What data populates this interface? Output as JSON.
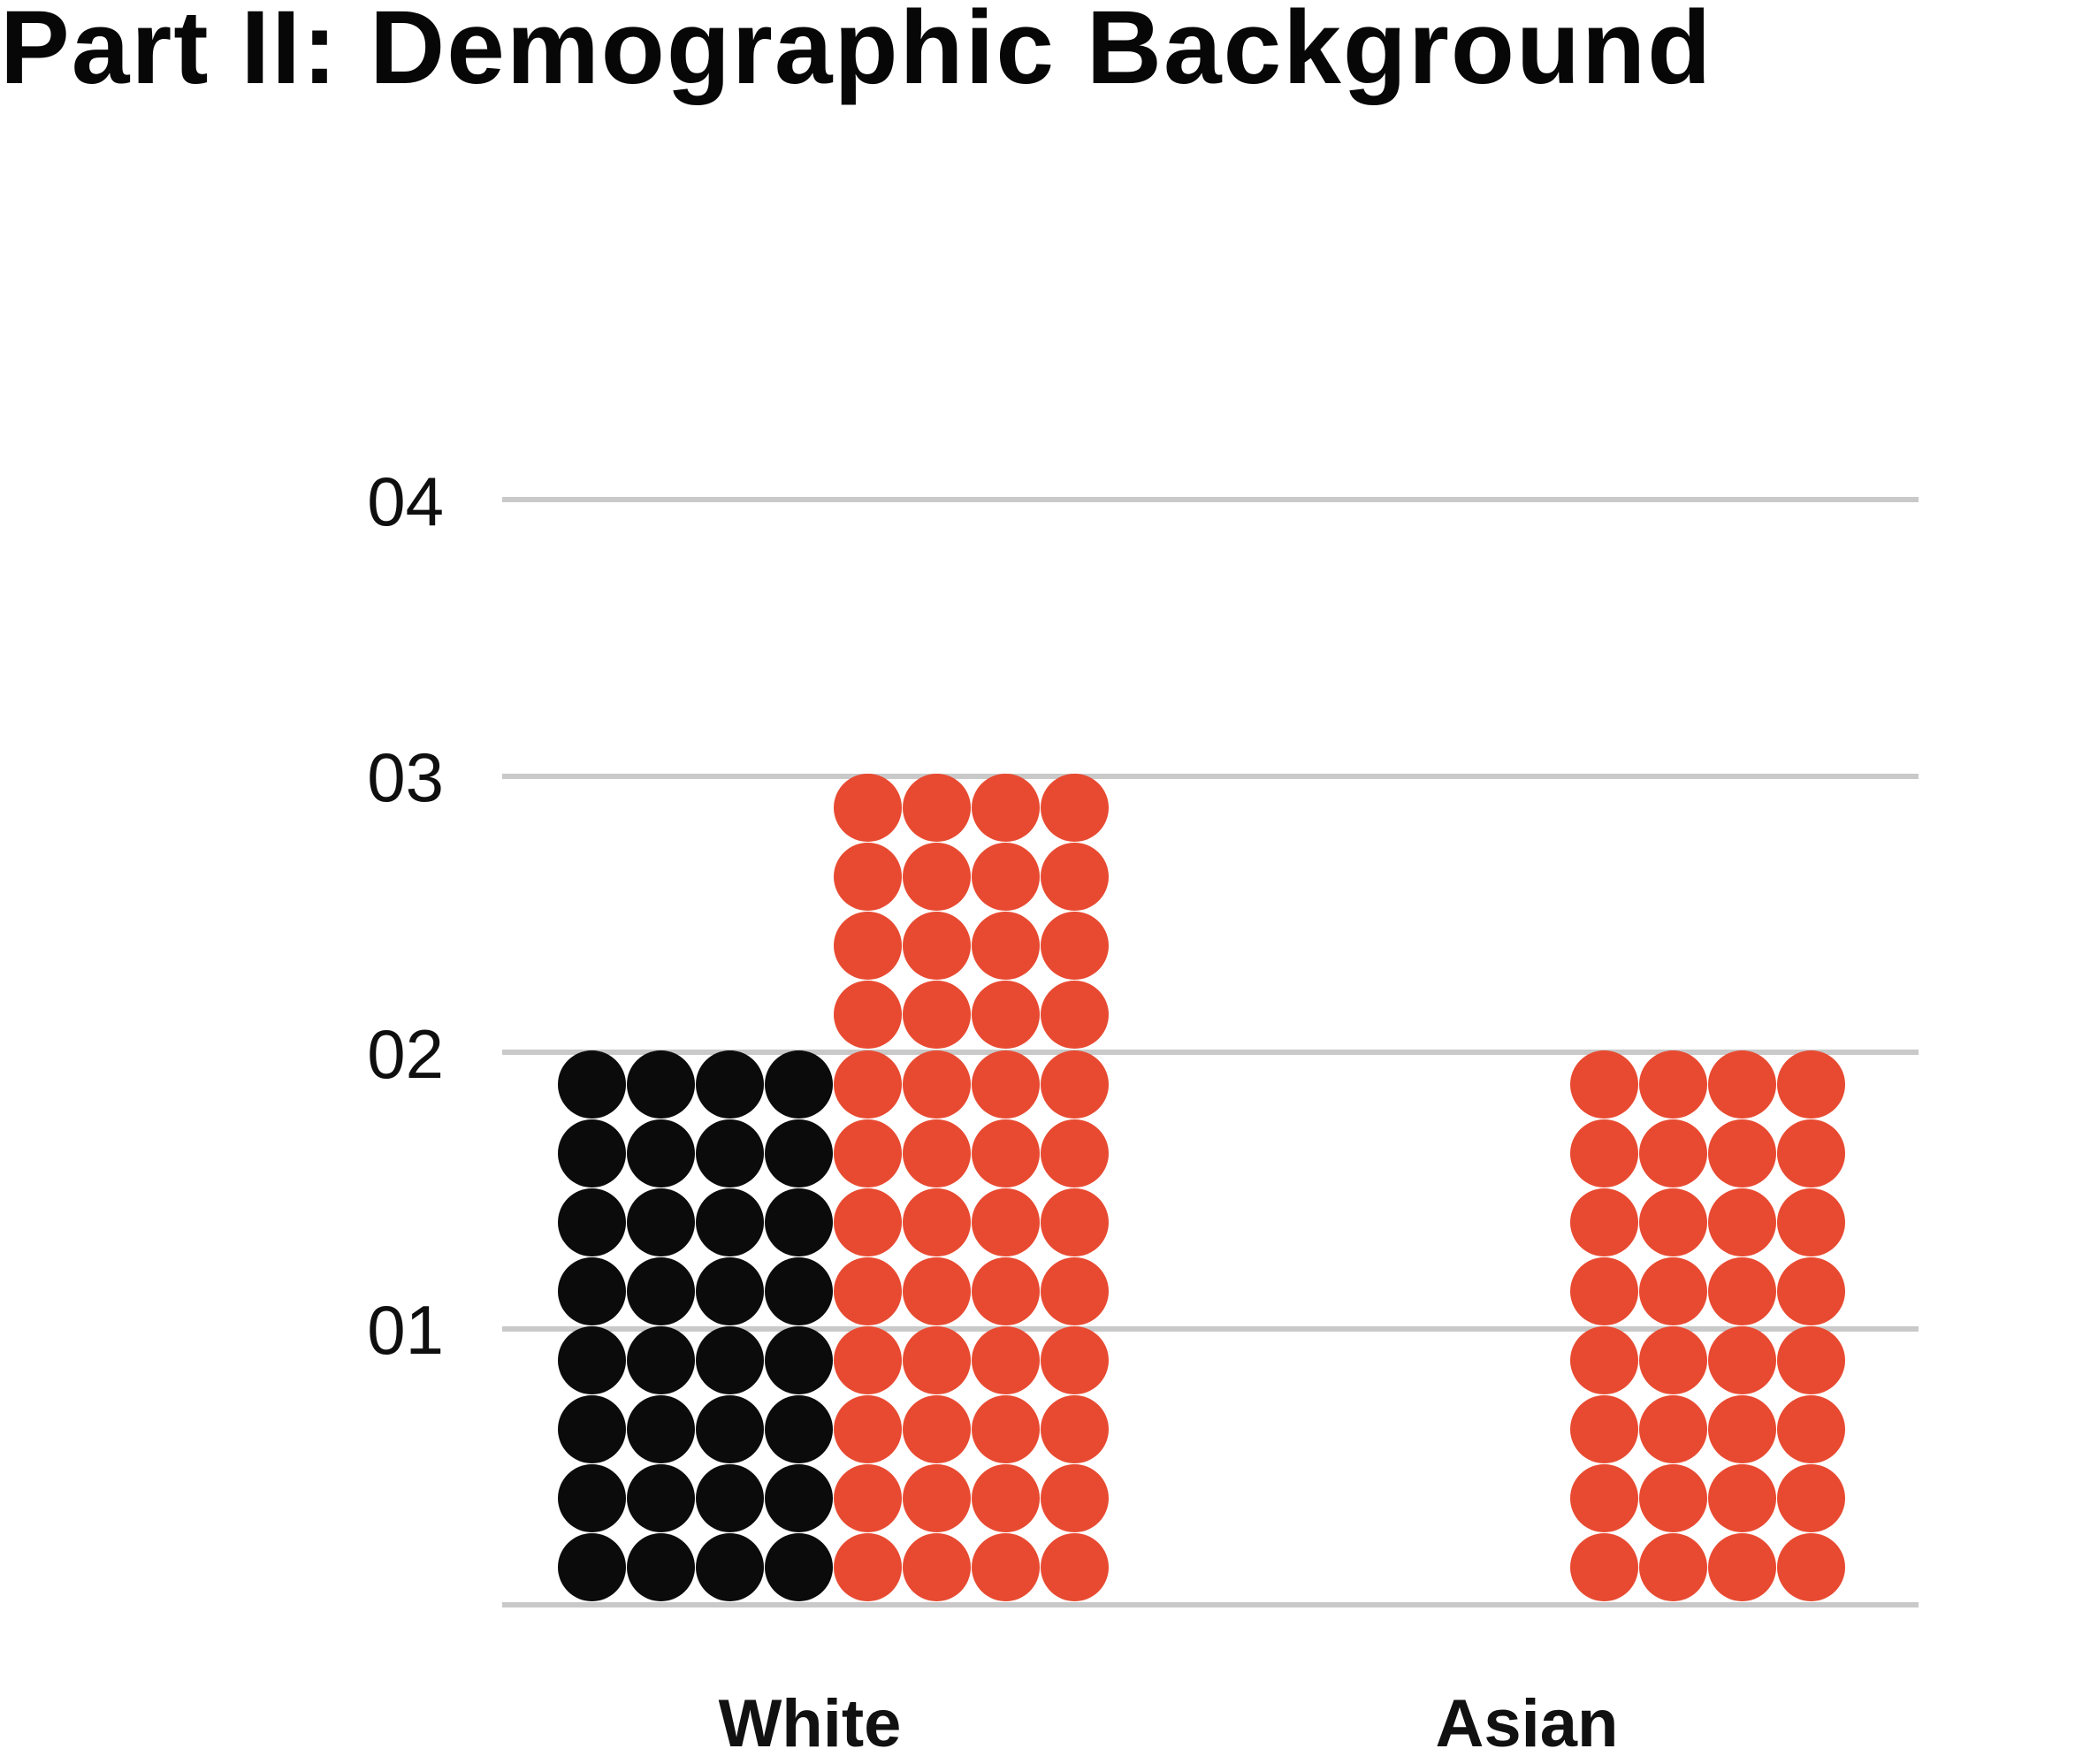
{
  "title": "Part II: Demographic Background",
  "chart_data": {
    "type": "bar",
    "subtype": "pictogram-dot-columns",
    "title": "Part II: Demographic Background",
    "categories": [
      "White",
      "Asian"
    ],
    "series": [
      {
        "name": "black-dots",
        "color": "#0b0b0b",
        "values": [
          2,
          0
        ]
      },
      {
        "name": "red-dots",
        "color": "#e84a31",
        "values": [
          3,
          2
        ]
      }
    ],
    "y_tick_labels": [
      "04",
      "03",
      "02",
      "01"
    ],
    "ylim": [
      0,
      4
    ],
    "dots_per_unit": 4,
    "dots_per_column_row": 4,
    "grid": true,
    "gridline_color": "#c9c9c9",
    "legend": "none"
  }
}
